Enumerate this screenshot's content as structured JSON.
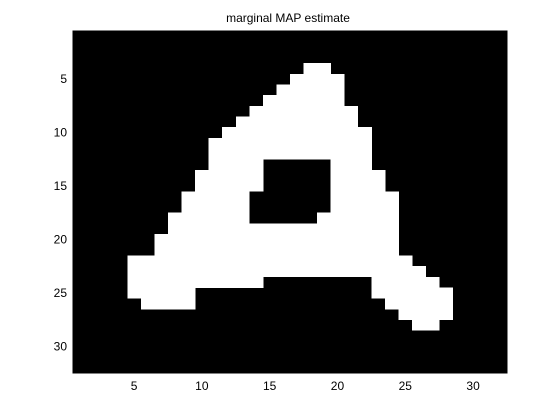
{
  "chart_data": {
    "type": "heatmap",
    "title": "marginal MAP estimate",
    "xlabel": "",
    "ylabel": "",
    "xlim": [
      0.5,
      32.5
    ],
    "ylim": [
      0.5,
      32.5
    ],
    "y_axis_direction": "top-down",
    "x_ticks": [
      5,
      10,
      15,
      20,
      25,
      30
    ],
    "y_ticks": [
      5,
      10,
      15,
      20,
      25,
      30
    ],
    "colormap": {
      "0": "#000000",
      "1": "#ffffff"
    },
    "grid": false,
    "legend": "none",
    "n_rows": 32,
    "n_cols": 32,
    "foreground_value": 1,
    "background_value": 0,
    "foreground_runs_by_row": [
      {
        "row": 4,
        "runs": [
          [
            18,
            19
          ]
        ]
      },
      {
        "row": 5,
        "runs": [
          [
            17,
            20
          ]
        ]
      },
      {
        "row": 6,
        "runs": [
          [
            16,
            20
          ]
        ]
      },
      {
        "row": 7,
        "runs": [
          [
            15,
            20
          ]
        ]
      },
      {
        "row": 8,
        "runs": [
          [
            14,
            21
          ]
        ]
      },
      {
        "row": 9,
        "runs": [
          [
            13,
            21
          ]
        ]
      },
      {
        "row": 10,
        "runs": [
          [
            12,
            22
          ]
        ]
      },
      {
        "row": 11,
        "runs": [
          [
            11,
            22
          ]
        ]
      },
      {
        "row": 12,
        "runs": [
          [
            11,
            22
          ]
        ]
      },
      {
        "row": 13,
        "runs": [
          [
            11,
            14
          ],
          [
            20,
            22
          ]
        ]
      },
      {
        "row": 14,
        "runs": [
          [
            10,
            14
          ],
          [
            20,
            23
          ]
        ]
      },
      {
        "row": 15,
        "runs": [
          [
            10,
            14
          ],
          [
            20,
            23
          ]
        ]
      },
      {
        "row": 16,
        "runs": [
          [
            9,
            13
          ],
          [
            20,
            24
          ]
        ]
      },
      {
        "row": 17,
        "runs": [
          [
            9,
            13
          ],
          [
            20,
            24
          ]
        ]
      },
      {
        "row": 18,
        "runs": [
          [
            8,
            13
          ],
          [
            19,
            24
          ]
        ]
      },
      {
        "row": 19,
        "runs": [
          [
            8,
            24
          ]
        ]
      },
      {
        "row": 20,
        "runs": [
          [
            7,
            24
          ]
        ]
      },
      {
        "row": 21,
        "runs": [
          [
            7,
            24
          ]
        ]
      },
      {
        "row": 22,
        "runs": [
          [
            5,
            25
          ]
        ]
      },
      {
        "row": 23,
        "runs": [
          [
            5,
            26
          ]
        ]
      },
      {
        "row": 24,
        "runs": [
          [
            5,
            14
          ],
          [
            23,
            27
          ]
        ]
      },
      {
        "row": 25,
        "runs": [
          [
            5,
            9
          ],
          [
            23,
            28
          ]
        ]
      },
      {
        "row": 26,
        "runs": [
          [
            6,
            9
          ],
          [
            24,
            28
          ]
        ]
      },
      {
        "row": 27,
        "runs": [
          [
            25,
            28
          ]
        ]
      },
      {
        "row": 28,
        "runs": [
          [
            26,
            27
          ]
        ]
      }
    ]
  }
}
